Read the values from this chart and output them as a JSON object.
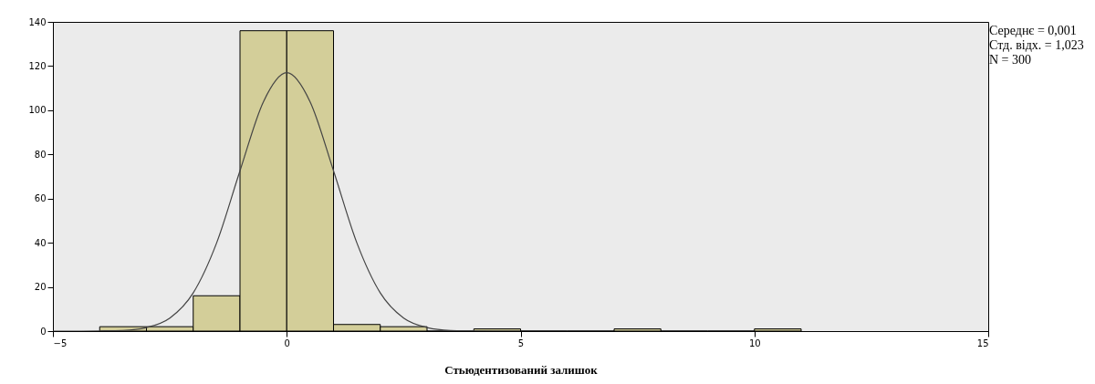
{
  "chart_data": {
    "type": "histogram",
    "xlabel": "Стьюдентизований залишок",
    "annotations": [
      "Середнє = 0,001",
      "Стд. відх. = 1,023",
      "N = 300"
    ],
    "bins": [
      -4,
      -3,
      -2,
      -1,
      0,
      1,
      2,
      3,
      4,
      5,
      6,
      7,
      8,
      9,
      10,
      11
    ],
    "values": [
      2,
      2,
      16,
      136,
      136,
      3,
      2,
      0,
      1,
      0,
      0,
      1,
      0,
      0,
      1
    ],
    "color": "#d3ce99",
    "series": [
      {
        "type": "line",
        "color": "#444444",
        "x": [
          -5,
          -4.5,
          -4,
          -3.5,
          -3,
          -2.5,
          -2,
          -1.5,
          -1,
          -0.5,
          0,
          0.5,
          1,
          1.5,
          2,
          2.5,
          3,
          3.5,
          4,
          4.5,
          5
        ],
        "values": [
          0,
          0,
          0.1,
          0.3,
          1.6,
          5.9,
          17.3,
          39.9,
          72.6,
          103.8,
          117,
          103.8,
          72.6,
          39.9,
          17.3,
          5.9,
          1.6,
          0.3,
          0.1,
          0,
          0
        ]
      }
    ],
    "xlim": [
      -5,
      15
    ],
    "ylim": [
      0,
      140
    ],
    "xticks": [
      -5,
      0,
      5,
      10,
      15
    ],
    "yticks": [
      0,
      20,
      40,
      60,
      80,
      100,
      120,
      140
    ]
  }
}
